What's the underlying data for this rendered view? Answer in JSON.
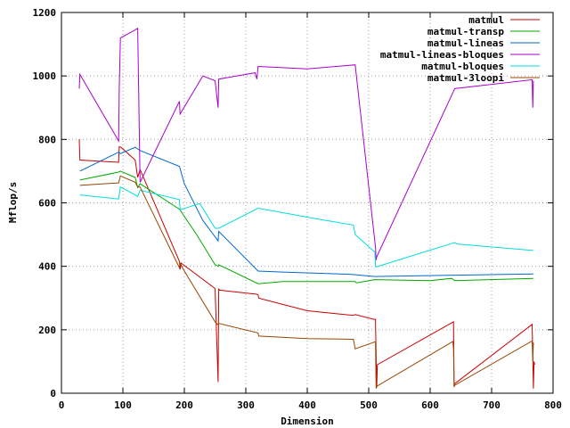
{
  "chart_data": {
    "type": "line",
    "xlabel": "Dimension",
    "ylabel": "Mflop/s",
    "xlim": [
      0,
      800
    ],
    "ylim": [
      0,
      1200
    ],
    "xticks": [
      0,
      100,
      200,
      300,
      400,
      500,
      600,
      700,
      800
    ],
    "yticks": [
      0,
      200,
      400,
      600,
      800,
      1000,
      1200
    ],
    "grid": true,
    "legend_position": "top-right",
    "series": [
      {
        "name": "matmul",
        "color": "#cc0000",
        "points": [
          [
            29,
            800
          ],
          [
            30,
            735
          ],
          [
            93,
            728
          ],
          [
            94,
            777
          ],
          [
            97,
            775
          ],
          [
            120,
            735
          ],
          [
            124,
            680
          ],
          [
            128,
            705
          ],
          [
            192,
            415
          ],
          [
            193,
            390
          ],
          [
            195,
            410
          ],
          [
            250,
            330
          ],
          [
            255,
            35
          ],
          [
            256,
            330
          ],
          [
            257,
            325
          ],
          [
            318,
            312
          ],
          [
            320,
            310
          ],
          [
            321,
            300
          ],
          [
            400,
            260
          ],
          [
            475,
            245
          ],
          [
            478,
            248
          ],
          [
            510,
            232
          ],
          [
            511,
            233
          ],
          [
            512,
            120
          ],
          [
            513,
            18
          ],
          [
            514,
            90
          ],
          [
            637,
            224
          ],
          [
            638,
            225
          ],
          [
            639,
            20
          ],
          [
            640,
            30
          ],
          [
            766,
            217
          ],
          [
            768,
            15
          ],
          [
            769,
            100
          ],
          [
            770,
            90
          ]
        ]
      },
      {
        "name": "matmul-transp",
        "color": "#00aa00",
        "points": [
          [
            30,
            672
          ],
          [
            93,
            697
          ],
          [
            96,
            700
          ],
          [
            120,
            680
          ],
          [
            124,
            648
          ],
          [
            128,
            660
          ],
          [
            192,
            580
          ],
          [
            220,
            500
          ],
          [
            250,
            405
          ],
          [
            255,
            400
          ],
          [
            256,
            405
          ],
          [
            320,
            345
          ],
          [
            360,
            352
          ],
          [
            478,
            352
          ],
          [
            480,
            348
          ],
          [
            510,
            358
          ],
          [
            600,
            355
          ],
          [
            635,
            362
          ],
          [
            640,
            355
          ],
          [
            768,
            362
          ]
        ]
      },
      {
        "name": "matmul-lineas",
        "color": "#0066cc",
        "points": [
          [
            30,
            700
          ],
          [
            93,
            760
          ],
          [
            96,
            755
          ],
          [
            120,
            775
          ],
          [
            124,
            770
          ],
          [
            128,
            765
          ],
          [
            192,
            715
          ],
          [
            200,
            660
          ],
          [
            230,
            545
          ],
          [
            255,
            480
          ],
          [
            256,
            510
          ],
          [
            320,
            385
          ],
          [
            360,
            382
          ],
          [
            470,
            375
          ],
          [
            510,
            368
          ],
          [
            640,
            372
          ],
          [
            768,
            376
          ]
        ]
      },
      {
        "name": "matmul-lineas-bloques",
        "color": "#aa00cc",
        "points": [
          [
            29,
            960
          ],
          [
            30,
            1005
          ],
          [
            93,
            795
          ],
          [
            94,
            960
          ],
          [
            96,
            1120
          ],
          [
            120,
            1145
          ],
          [
            124,
            1150
          ],
          [
            128,
            665
          ],
          [
            192,
            920
          ],
          [
            193,
            880
          ],
          [
            230,
            1000
          ],
          [
            250,
            985
          ],
          [
            255,
            900
          ],
          [
            256,
            990
          ],
          [
            315,
            1010
          ],
          [
            318,
            990
          ],
          [
            320,
            1030
          ],
          [
            400,
            1022
          ],
          [
            478,
            1035
          ],
          [
            511,
            460
          ],
          [
            512,
            420
          ],
          [
            513,
            430
          ],
          [
            640,
            960
          ],
          [
            766,
            988
          ],
          [
            767,
            900
          ],
          [
            768,
            985
          ]
        ]
      },
      {
        "name": "matmul-bloques",
        "color": "#00dddd",
        "points": [
          [
            30,
            625
          ],
          [
            93,
            612
          ],
          [
            96,
            650
          ],
          [
            120,
            625
          ],
          [
            124,
            620
          ],
          [
            128,
            640
          ],
          [
            192,
            610
          ],
          [
            193,
            578
          ],
          [
            225,
            598
          ],
          [
            250,
            520
          ],
          [
            256,
            520
          ],
          [
            320,
            583
          ],
          [
            420,
            548
          ],
          [
            475,
            530
          ],
          [
            478,
            500
          ],
          [
            510,
            445
          ],
          [
            511,
            402
          ],
          [
            512,
            398
          ],
          [
            640,
            475
          ],
          [
            645,
            470
          ],
          [
            768,
            450
          ]
        ]
      },
      {
        "name": "matmul-3loopi",
        "color": "#994400",
        "points": [
          [
            30,
            655
          ],
          [
            93,
            663
          ],
          [
            96,
            685
          ],
          [
            120,
            665
          ],
          [
            124,
            650
          ],
          [
            128,
            650
          ],
          [
            192,
            395
          ],
          [
            193,
            410
          ],
          [
            200,
            385
          ],
          [
            250,
            225
          ],
          [
            255,
            215
          ],
          [
            256,
            220
          ],
          [
            320,
            190
          ],
          [
            321,
            180
          ],
          [
            400,
            172
          ],
          [
            475,
            170
          ],
          [
            478,
            140
          ],
          [
            510,
            162
          ],
          [
            511,
            160
          ],
          [
            512,
            15
          ],
          [
            513,
            22
          ],
          [
            637,
            163
          ],
          [
            638,
            140
          ],
          [
            639,
            22
          ],
          [
            640,
            25
          ],
          [
            766,
            165
          ],
          [
            767,
            100
          ],
          [
            768,
            160
          ]
        ]
      }
    ]
  }
}
